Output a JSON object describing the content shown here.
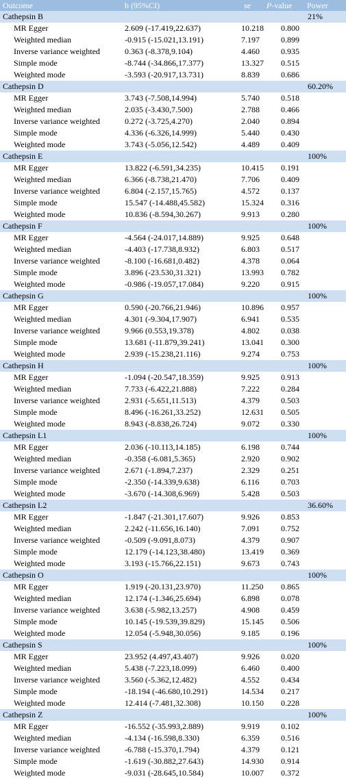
{
  "header": {
    "outcome": "Outcome",
    "b": "b (95%CI)",
    "se": "se",
    "p_italic": "P",
    "p_rest": "-value",
    "power": "Power"
  },
  "groups": [
    {
      "name": "Cathepsin B",
      "power": "21%",
      "rows": [
        {
          "method": "MR Egger",
          "b": "2.609 (-17.419,22.637)",
          "se": "10.218",
          "p": "0.800"
        },
        {
          "method": "Weighted median",
          "b": "-0.915 (-15.021,13.191)",
          "se": "7.197",
          "p": "0.899"
        },
        {
          "method": "Inverse variance weighted",
          "b": "0.363 (-8.378,9.104)",
          "se": "4.460",
          "p": "0.935"
        },
        {
          "method": "Simple mode",
          "b": "-8.744 (-34.866,17.377)",
          "se": "13.327",
          "p": "0.515"
        },
        {
          "method": "Weighted mode",
          "b": "-3.593 (-20.917,13.731)",
          "se": "8.839",
          "p": "0.686"
        }
      ]
    },
    {
      "name": "Cathepsin D",
      "power": "60.20%",
      "rows": [
        {
          "method": "MR Egger",
          "b": "3.743 (-7.508,14.994)",
          "se": "5.740",
          "p": "0.518"
        },
        {
          "method": "Weighted median",
          "b": "2.035 (-3.430,7.500)",
          "se": "2.788",
          "p": "0.466"
        },
        {
          "method": "Inverse variance weighted",
          "b": "0.272 (-3.725,4.270)",
          "se": "2.040",
          "p": "0.894"
        },
        {
          "method": "Simple mode",
          "b": "4.336 (-6.326,14.999)",
          "se": "5.440",
          "p": "0.430"
        },
        {
          "method": "Weighted mode",
          "b": "3.743 (-5.056,12.542)",
          "se": "4.489",
          "p": "0.409"
        }
      ]
    },
    {
      "name": "Cathepsin E",
      "power": "100%",
      "rows": [
        {
          "method": "MR Egger",
          "b": "13.822 (-6.591,34.235)",
          "se": "10.415",
          "p": "0.191"
        },
        {
          "method": "Weighted median",
          "b": "6.366 (-8.738,21.470)",
          "se": "7.706",
          "p": "0.409"
        },
        {
          "method": "Inverse variance weighted",
          "b": "6.804 (-2.157,15.765)",
          "se": "4.572",
          "p": "0.137"
        },
        {
          "method": "Simple mode",
          "b": "15.547 (-14.488,45.582)",
          "se": "15.324",
          "p": "0.316"
        },
        {
          "method": "Weighted mode",
          "b": "10.836 (-8.594,30.267)",
          "se": "9.913",
          "p": "0.280"
        }
      ]
    },
    {
      "name": "Cathepsin F",
      "power": "100%",
      "rows": [
        {
          "method": "MR Egger",
          "b": "-4.564 (-24.017,14.889)",
          "se": "9.925",
          "p": "0.648"
        },
        {
          "method": "Weighted median",
          "b": "-4.403 (-17.738,8.932)",
          "se": "6.803",
          "p": "0.517"
        },
        {
          "method": "Inverse variance weighted",
          "b": "-8.100 (-16.681,0.482)",
          "se": "4.378",
          "p": "0.064"
        },
        {
          "method": "Simple mode",
          "b": "3.896 (-23.530,31.321)",
          "se": "13.993",
          "p": "0.782"
        },
        {
          "method": "Weighted mode",
          "b": "-0.986 (-19.057,17.084)",
          "se": "9.220",
          "p": "0.915"
        }
      ]
    },
    {
      "name": "Cathepsin G",
      "power": "100%",
      "rows": [
        {
          "method": "MR Egger",
          "b": "0.590 (-20.766,21.946)",
          "se": "10.896",
          "p": "0.957"
        },
        {
          "method": "Weighted median",
          "b": "4.301 (-9.304,17.907)",
          "se": "6.941",
          "p": "0.535"
        },
        {
          "method": "Inverse variance weighted",
          "b": "9.966 (0.553,19.378)",
          "se": "4.802",
          "p": "0.038"
        },
        {
          "method": "Simple mode",
          "b": "13.681 (-11.879,39.241)",
          "se": "13.041",
          "p": "0.300"
        },
        {
          "method": "Weighted mode",
          "b": "2.939 (-15.238,21.116)",
          "se": "9.274",
          "p": "0.753"
        }
      ]
    },
    {
      "name": "Cathepsin H",
      "power": "100%",
      "rows": [
        {
          "method": "MR Egger",
          "b": "-1.094 (-20.547,18.359)",
          "se": "9.925",
          "p": "0.913"
        },
        {
          "method": "Weighted median",
          "b": "7.733 (-6.422,21.888)",
          "se": "7.222",
          "p": "0.284"
        },
        {
          "method": "Inverse variance weighted",
          "b": "2.931 (-5.651,11.513)",
          "se": "4.379",
          "p": "0.503"
        },
        {
          "method": "Simple mode",
          "b": "8.496 (-16.261,33.252)",
          "se": "12.631",
          "p": "0.505"
        },
        {
          "method": "Weighted mode",
          "b": "8.943 (-8.838,26.724)",
          "se": "9.072",
          "p": "0.330"
        }
      ]
    },
    {
      "name": "Cathepsin L1",
      "power": "100%",
      "rows": [
        {
          "method": "MR Egger",
          "b": "2.036 (-10.113,14.185)",
          "se": "6.198",
          "p": "0.744"
        },
        {
          "method": "Weighted median",
          "b": "-0.358 (-6.081,5.365)",
          "se": "2.920",
          "p": "0.902"
        },
        {
          "method": "Inverse variance weighted",
          "b": "2.671 (-1.894,7.237)",
          "se": "2.329",
          "p": "0.251"
        },
        {
          "method": "Simple mode",
          "b": "-2.350 (-14.339,9.638)",
          "se": "6.116",
          "p": "0.703"
        },
        {
          "method": "Weighted mode",
          "b": "-3.670 (-14.308,6.969)",
          "se": "5.428",
          "p": "0.503"
        }
      ]
    },
    {
      "name": "Cathepsin L2",
      "power": "36.60%",
      "rows": [
        {
          "method": "MR Egger",
          "b": "-1.847 (-21.301,17.607)",
          "se": "9.926",
          "p": "0.853"
        },
        {
          "method": "Weighted median",
          "b": "2.242 (-11.656,16.140)",
          "se": "7.091",
          "p": "0.752"
        },
        {
          "method": "Inverse variance weighted",
          "b": "-0.509 (-9.091,8.073)",
          "se": "4.379",
          "p": "0.907"
        },
        {
          "method": "Simple mode",
          "b": "12.179 (-14.123,38.480)",
          "se": "13.419",
          "p": "0.369"
        },
        {
          "method": "Weighted mode",
          "b": "3.193 (-15.766,22.151)",
          "se": "9.673",
          "p": "0.743"
        }
      ]
    },
    {
      "name": "Cathepsin O",
      "power": "100%",
      "rows": [
        {
          "method": "MR Egger",
          "b": "1.919 (-20.131,23.970)",
          "se": "11.250",
          "p": "0.865"
        },
        {
          "method": "Weighted median",
          "b": "12.174 (-1.346,25.694)",
          "se": "6.898",
          "p": "0.078"
        },
        {
          "method": "Inverse variance weighted",
          "b": "3.638 (-5.982,13.257)",
          "se": "4.908",
          "p": "0.459"
        },
        {
          "method": "Simple mode",
          "b": "10.145 (-19.539,39.829)",
          "se": "15.145",
          "p": "0.506"
        },
        {
          "method": "Weighted mode",
          "b": "12.054 (-5.948,30.056)",
          "se": "9.185",
          "p": "0.196"
        }
      ]
    },
    {
      "name": "Cathepsin S",
      "power": "100%",
      "rows": [
        {
          "method": "MR Egger",
          "b": "23.952 (4.497,43.407)",
          "se": "9.926",
          "p": "0.020"
        },
        {
          "method": "Weighted median",
          "b": "5.438 (-7.223,18.099)",
          "se": "6.460",
          "p": "0.400"
        },
        {
          "method": "Inverse variance weighted",
          "b": "3.560 (-5.362,12.482)",
          "se": "4.552",
          "p": "0.434"
        },
        {
          "method": "Simple mode",
          "b": "-18.194 (-46.680,10.291)",
          "se": "14.534",
          "p": "0.217"
        },
        {
          "method": "Weighted mode",
          "b": "12.414 (-7.481,32.308)",
          "se": "10.150",
          "p": "0.228"
        }
      ]
    },
    {
      "name": "Cathepsin Z",
      "power": "100%",
      "rows": [
        {
          "method": "MR Egger",
          "b": "-16.552 (-35.993,2.889)",
          "se": "9.919",
          "p": "0.102"
        },
        {
          "method": "Weighted median",
          "b": "-4.134 (-16.598,8.330)",
          "se": "6.359",
          "p": "0.516"
        },
        {
          "method": "Inverse variance weighted",
          "b": "-6.788 (-15.370,1.794)",
          "se": "4.379",
          "p": "0.121"
        },
        {
          "method": "Simple mode",
          "b": "-1.619 (-30.882,27.643)",
          "se": "14.930",
          "p": "0.914"
        },
        {
          "method": "Weighted mode",
          "b": "-9.031 (-28.645,10.584)",
          "se": "10.007",
          "p": "0.372"
        }
      ]
    }
  ]
}
